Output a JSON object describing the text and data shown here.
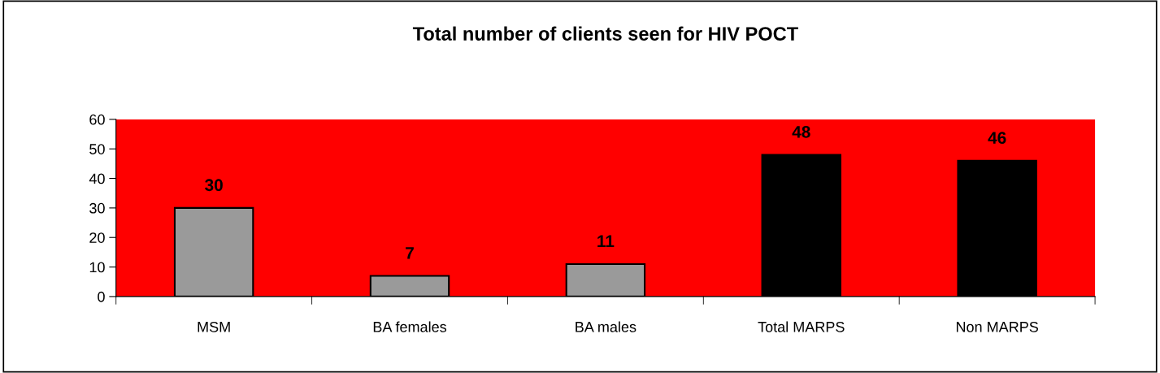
{
  "chart_data": {
    "type": "bar",
    "title": "Total number of clients seen for HIV POCT",
    "categories": [
      "MSM",
      "BA females",
      "BA males",
      "Total MARPS",
      "Non MARPS"
    ],
    "values": [
      30,
      7,
      11,
      48,
      46
    ],
    "colors": [
      "#9a9a9a",
      "#9a9a9a",
      "#9a9a9a",
      "#000000",
      "#000000"
    ],
    "ylim": [
      0,
      60
    ],
    "yticks": [
      0,
      10,
      20,
      30,
      40,
      50,
      60
    ],
    "grid": false,
    "legend": false,
    "data_labels": true
  }
}
